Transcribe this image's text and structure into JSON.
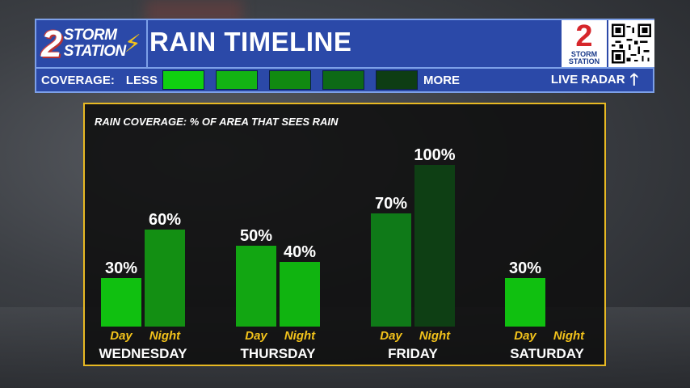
{
  "header": {
    "brand_number": "2",
    "brand_line1": "STORM",
    "brand_line2": "STATION",
    "title": "RAIN TIMELINE",
    "channel_number": "2",
    "channel_line1": "STORM",
    "channel_line2": "STATION"
  },
  "legend": {
    "label": "COVERAGE:",
    "less": "LESS",
    "more": "MORE",
    "live_radar": "LIVE RADAR",
    "swatch_colors": [
      "#10d010",
      "#13b313",
      "#118a11",
      "#0d6a16",
      "#0e3d14"
    ]
  },
  "colors": {
    "header_bg": "#2b49a8",
    "panel_border": "#e8b923",
    "period_label": "#f2c21b"
  },
  "chart_data": {
    "type": "bar",
    "title": "RAIN COVERAGE: % OF AREA THAT SEES RAIN",
    "ylim": [
      0,
      100
    ],
    "categories": [
      "WEDNESDAY",
      "THURSDAY",
      "FRIDAY",
      "SATURDAY"
    ],
    "periods": [
      "Day",
      "Night"
    ],
    "groups": [
      {
        "day": "WEDNESDAY",
        "bars": [
          {
            "period": "Day",
            "value": 30,
            "label": "30%",
            "color": "#10c010"
          },
          {
            "period": "Night",
            "value": 60,
            "label": "60%",
            "color": "#138f13"
          }
        ]
      },
      {
        "day": "THURSDAY",
        "bars": [
          {
            "period": "Day",
            "value": 50,
            "label": "50%",
            "color": "#12a612"
          },
          {
            "period": "Night",
            "value": 40,
            "label": "40%",
            "color": "#10b410"
          }
        ]
      },
      {
        "day": "FRIDAY",
        "bars": [
          {
            "period": "Day",
            "value": 70,
            "label": "70%",
            "color": "#0f7a18"
          },
          {
            "period": "Night",
            "value": 100,
            "label": "100%",
            "color": "#0e3f14"
          }
        ]
      },
      {
        "day": "SATURDAY",
        "bars": [
          {
            "period": "Day",
            "value": 30,
            "label": "30%",
            "color": "#10c010"
          },
          {
            "period": "Night",
            "value": null,
            "label": "",
            "color": ""
          }
        ]
      }
    ]
  }
}
